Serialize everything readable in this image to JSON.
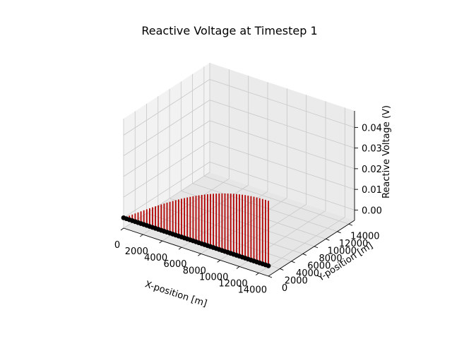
{
  "chart_data": {
    "type": "3d-stem",
    "title": "Reactive Voltage at Timestep 1",
    "xlabel": "X-position [m]",
    "ylabel": "Y-position [m]",
    "zlabel": "Reactive Voltage (V)",
    "x_ticks": [
      "0",
      "2000",
      "4000",
      "6000",
      "8000",
      "10000",
      "12000",
      "14000"
    ],
    "y_ticks": [
      "0",
      "2000",
      "4000",
      "6000",
      "8000",
      "10000",
      "12000",
      "14000"
    ],
    "z_ticks": [
      "0.00",
      "0.01",
      "0.02",
      "0.03",
      "0.04"
    ],
    "xlim": [
      0,
      15000
    ],
    "ylim": [
      0,
      15000
    ],
    "zlim": [
      -0.005,
      0.048
    ],
    "grid": true,
    "stem_color": "#b30000",
    "marker_color": "#000000",
    "points": {
      "count": 51,
      "x_start": 0,
      "x_end": 15000,
      "y": 0,
      "profile": "z = 0.0315 * sin(pi * x / 30000)"
    }
  }
}
